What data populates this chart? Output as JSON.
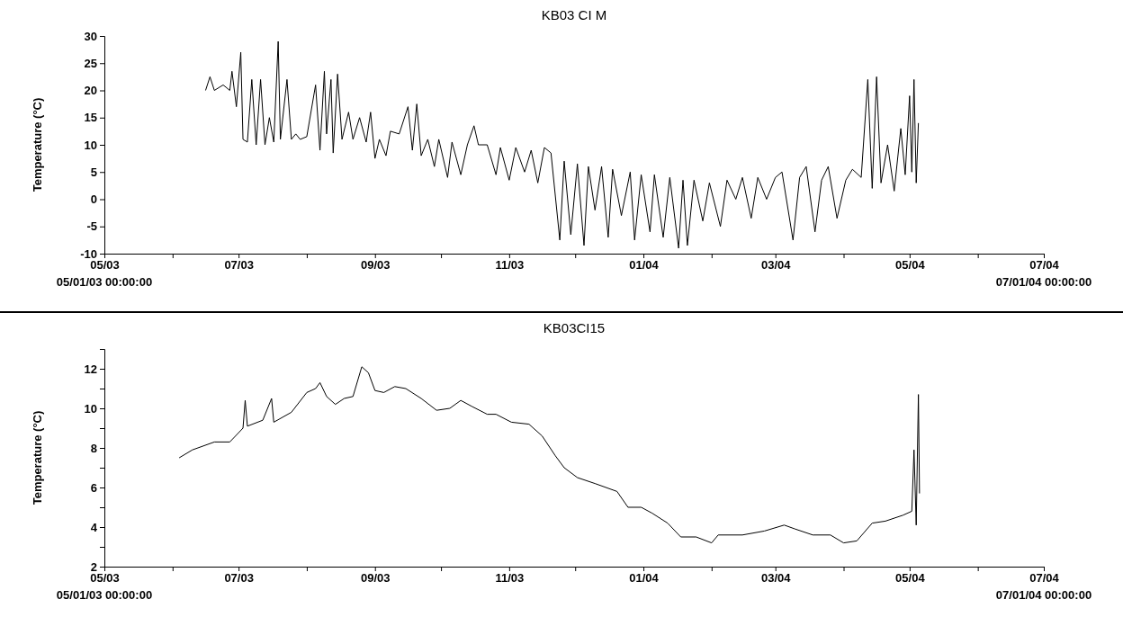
{
  "chart_data": [
    {
      "type": "line",
      "title": "KB03 CI M",
      "ylabel": "Temperature (°C)",
      "annotations": [
        "05/01/03 00:00:00",
        "07/01/04 00:00:00"
      ],
      "xlim": [
        "2003-05-01",
        "2004-07-01"
      ],
      "xticks": [
        {
          "value": "2003-05-01",
          "label": "05/03"
        },
        {
          "value": "2003-06-01",
          "label": null
        },
        {
          "value": "2003-07-01",
          "label": "07/03"
        },
        {
          "value": "2003-08-01",
          "label": null
        },
        {
          "value": "2003-09-01",
          "label": "09/03"
        },
        {
          "value": "2003-10-01",
          "label": null
        },
        {
          "value": "2003-11-01",
          "label": "11/03"
        },
        {
          "value": "2003-12-01",
          "label": null
        },
        {
          "value": "2004-01-01",
          "label": "01/04"
        },
        {
          "value": "2004-02-01",
          "label": null
        },
        {
          "value": "2004-03-01",
          "label": "03/04"
        },
        {
          "value": "2004-04-01",
          "label": null
        },
        {
          "value": "2004-05-01",
          "label": "05/04"
        },
        {
          "value": "2004-06-01",
          "label": null
        },
        {
          "value": "2004-07-01",
          "label": "07/04"
        }
      ],
      "ylim": [
        -10,
        30
      ],
      "yticks": [
        -10,
        -5,
        0,
        5,
        10,
        15,
        20,
        25,
        30
      ],
      "marker": "none",
      "line_style": "solid",
      "series": [
        {
          "color": "#000000",
          "x": [
            "2003-06-16",
            "2003-06-18",
            "2003-06-20",
            "2003-06-24",
            "2003-06-27",
            "2003-06-28",
            "2003-06-30",
            "2003-07-02",
            "2003-07-03",
            "2003-07-05",
            "2003-07-07",
            "2003-07-09",
            "2003-07-11",
            "2003-07-13",
            "2003-07-15",
            "2003-07-17",
            "2003-07-19",
            "2003-07-20",
            "2003-07-23",
            "2003-07-25",
            "2003-07-27",
            "2003-07-29",
            "2003-08-01",
            "2003-08-05",
            "2003-08-07",
            "2003-08-09",
            "2003-08-10",
            "2003-08-12",
            "2003-08-13",
            "2003-08-15",
            "2003-08-17",
            "2003-08-20",
            "2003-08-22",
            "2003-08-25",
            "2003-08-28",
            "2003-08-30",
            "2003-09-01",
            "2003-09-03",
            "2003-09-06",
            "2003-09-08",
            "2003-09-12",
            "2003-09-16",
            "2003-09-18",
            "2003-09-20",
            "2003-09-22",
            "2003-09-25",
            "2003-09-28",
            "2003-09-30",
            "2003-10-04",
            "2003-10-06",
            "2003-10-10",
            "2003-10-13",
            "2003-10-16",
            "2003-10-18",
            "2003-10-22",
            "2003-10-26",
            "2003-10-28",
            "2003-11-01",
            "2003-11-04",
            "2003-11-08",
            "2003-11-11",
            "2003-11-14",
            "2003-11-17",
            "2003-11-20",
            "2003-11-24",
            "2003-11-26",
            "2003-11-29",
            "2003-12-02",
            "2003-12-05",
            "2003-12-07",
            "2003-12-10",
            "2003-12-13",
            "2003-12-16",
            "2003-12-18",
            "2003-12-22",
            "2003-12-26",
            "2003-12-28",
            "2003-12-31",
            "2004-01-04",
            "2004-01-06",
            "2004-01-10",
            "2004-01-13",
            "2004-01-17",
            "2004-01-19",
            "2004-01-21",
            "2004-01-24",
            "2004-01-28",
            "2004-01-31",
            "2004-02-05",
            "2004-02-08",
            "2004-02-12",
            "2004-02-15",
            "2004-02-19",
            "2004-02-22",
            "2004-02-26",
            "2004-03-01",
            "2004-03-04",
            "2004-03-09",
            "2004-03-12",
            "2004-03-15",
            "2004-03-19",
            "2004-03-22",
            "2004-03-25",
            "2004-03-29",
            "2004-04-02",
            "2004-04-05",
            "2004-04-09",
            "2004-04-12",
            "2004-04-14",
            "2004-04-16",
            "2004-04-18",
            "2004-04-21",
            "2004-04-24",
            "2004-04-27",
            "2004-04-29",
            "2004-05-01",
            "2004-05-02",
            "2004-05-03",
            "2004-05-04",
            "2004-05-05"
          ],
          "values": [
            20,
            22.5,
            20,
            21,
            20,
            23.5,
            17,
            27,
            11,
            10.5,
            22,
            10,
            22,
            10,
            15,
            10.5,
            29,
            11,
            22,
            11,
            12,
            11,
            11.5,
            21,
            9,
            23.5,
            12,
            22,
            8.5,
            23,
            11,
            16,
            11,
            15,
            10.5,
            16,
            7.5,
            11,
            8,
            12.5,
            12,
            17,
            9,
            17.5,
            8,
            11,
            6,
            11,
            4,
            10.5,
            4.5,
            10,
            13.5,
            10,
            10,
            4.5,
            9.5,
            3.5,
            9.5,
            5,
            9,
            3,
            9.5,
            8.5,
            -7.5,
            7,
            -6.5,
            6.5,
            -8.5,
            6,
            -2,
            6,
            -7,
            5.5,
            -3,
            5,
            -7.5,
            4.5,
            -6,
            4.5,
            -7,
            4,
            -9,
            3.5,
            -8.5,
            3.5,
            -4,
            3,
            -5,
            3.5,
            0,
            4,
            -3.5,
            4,
            0,
            4,
            5,
            -7.5,
            4,
            6,
            -6,
            3.5,
            6,
            -3.5,
            3.5,
            5.5,
            4,
            22,
            2,
            22.5,
            3,
            10,
            1.5,
            13,
            4.5,
            19,
            5,
            22,
            3,
            14
          ]
        }
      ]
    },
    {
      "type": "line",
      "title": "KB03CI15",
      "ylabel": "Temperature (°C)",
      "annotations": [
        "05/01/03 00:00:00",
        "07/01/04 00:00:00"
      ],
      "xlim": [
        "2003-05-01",
        "2004-07-01"
      ],
      "xticks": [
        {
          "value": "2003-05-01",
          "label": "05/03"
        },
        {
          "value": "2003-06-01",
          "label": null
        },
        {
          "value": "2003-07-01",
          "label": "07/03"
        },
        {
          "value": "2003-08-01",
          "label": null
        },
        {
          "value": "2003-09-01",
          "label": "09/03"
        },
        {
          "value": "2003-10-01",
          "label": null
        },
        {
          "value": "2003-11-01",
          "label": "11/03"
        },
        {
          "value": "2003-12-01",
          "label": null
        },
        {
          "value": "2004-01-01",
          "label": "01/04"
        },
        {
          "value": "2004-02-01",
          "label": null
        },
        {
          "value": "2004-03-01",
          "label": "03/04"
        },
        {
          "value": "2004-04-01",
          "label": null
        },
        {
          "value": "2004-05-01",
          "label": "05/04"
        },
        {
          "value": "2004-06-01",
          "label": null
        },
        {
          "value": "2004-07-01",
          "label": "07/04"
        }
      ],
      "ylim": [
        2,
        13
      ],
      "yticks": [
        2,
        {
          "value": 3,
          "label": null
        },
        4,
        {
          "value": 5,
          "label": null
        },
        6,
        {
          "value": 7,
          "label": null
        },
        8,
        {
          "value": 9,
          "label": null
        },
        10,
        {
          "value": 11,
          "label": null
        },
        12
      ],
      "marker": "none",
      "line_style": "solid",
      "series": [
        {
          "color": "#000000",
          "x": [
            "2003-06-04",
            "2003-06-10",
            "2003-06-15",
            "2003-06-20",
            "2003-06-27",
            "2003-07-03",
            "2003-07-04",
            "2003-07-05",
            "2003-07-12",
            "2003-07-16",
            "2003-07-17",
            "2003-07-25",
            "2003-08-01",
            "2003-08-05",
            "2003-08-07",
            "2003-08-10",
            "2003-08-14",
            "2003-08-18",
            "2003-08-22",
            "2003-08-26",
            "2003-08-29",
            "2003-09-01",
            "2003-09-05",
            "2003-09-10",
            "2003-09-15",
            "2003-09-22",
            "2003-09-29",
            "2003-10-05",
            "2003-10-10",
            "2003-10-15",
            "2003-10-22",
            "2003-10-26",
            "2003-11-02",
            "2003-11-10",
            "2003-11-16",
            "2003-11-22",
            "2003-11-26",
            "2003-12-02",
            "2003-12-10",
            "2003-12-20",
            "2003-12-25",
            "2003-12-31",
            "2004-01-05",
            "2004-01-12",
            "2004-01-18",
            "2004-01-25",
            "2004-02-01",
            "2004-02-04",
            "2004-02-15",
            "2004-02-25",
            "2004-03-05",
            "2004-03-10",
            "2004-03-18",
            "2004-03-26",
            "2004-04-01",
            "2004-04-07",
            "2004-04-14",
            "2004-04-20",
            "2004-04-28",
            "2004-05-02",
            "2004-05-03",
            "2004-05-04",
            "2004-05-05",
            "2004-05-05T12:00"
          ],
          "values": [
            7.5,
            7.9,
            8.1,
            8.3,
            8.3,
            9.0,
            10.4,
            9.1,
            9.4,
            10.5,
            9.3,
            9.8,
            10.8,
            11.0,
            11.3,
            10.6,
            10.2,
            10.5,
            10.6,
            12.1,
            11.8,
            10.9,
            10.8,
            11.1,
            11.0,
            10.5,
            9.9,
            10.0,
            10.4,
            10.1,
            9.7,
            9.7,
            9.3,
            9.2,
            8.6,
            7.6,
            7.0,
            6.5,
            6.2,
            5.8,
            5.0,
            5.0,
            4.7,
            4.2,
            3.5,
            3.5,
            3.2,
            3.6,
            3.6,
            3.8,
            4.1,
            3.9,
            3.6,
            3.6,
            3.2,
            3.3,
            4.2,
            4.3,
            4.6,
            4.8,
            7.9,
            4.1,
            10.7,
            5.7
          ]
        }
      ]
    }
  ]
}
